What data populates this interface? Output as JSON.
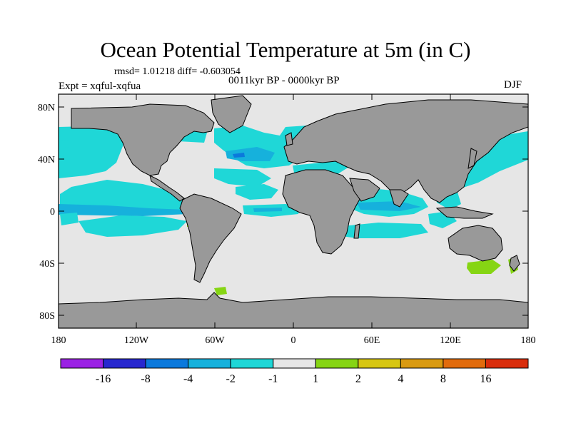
{
  "title": "Ocean Potential Temperature at 5m (in C)",
  "stats_text": "rmsd= 1.01218 diff= -0.603054",
  "period_text": "0011kyr BP - 0000kyr BP",
  "experiment_text": "Expt = xqful-xqfua",
  "season": "DJF",
  "axes": {
    "y_ticks": [
      "80N",
      "40N",
      "0",
      "40S",
      "80S"
    ],
    "x_ticks": [
      "180",
      "120W",
      "60W",
      "0",
      "60E",
      "120E",
      "180"
    ]
  },
  "colors": {
    "land": "#999999",
    "neutral_ocean": "#e6e6e6",
    "frame": "#000000",
    "coast": "#000000"
  },
  "colorbar": {
    "colors": [
      "#9b22e4",
      "#2727cf",
      "#0b79dc",
      "#16b1dc",
      "#1fd7d7",
      "#e6e6e6",
      "#86d514",
      "#d7c612",
      "#d99a11",
      "#e16b0d",
      "#d92d0c"
    ],
    "labels": [
      "-16",
      "-8",
      "-4",
      "-2",
      "-1",
      "1",
      "2",
      "4",
      "8",
      "16"
    ]
  },
  "chart_data": {
    "type": "heatmap",
    "title": "Ocean Potential Temperature at 5m (in C)",
    "variable": "ocean potential temperature difference at 5m (C)",
    "projection": "cylindrical equidistant",
    "xlim": [
      -180,
      180
    ],
    "ylim": [
      -90,
      90
    ],
    "levels": [
      -16,
      -8,
      -4,
      -2,
      -1,
      1,
      2,
      4,
      8,
      16
    ],
    "diff": -0.603054,
    "rmsd": 1.01218
  }
}
